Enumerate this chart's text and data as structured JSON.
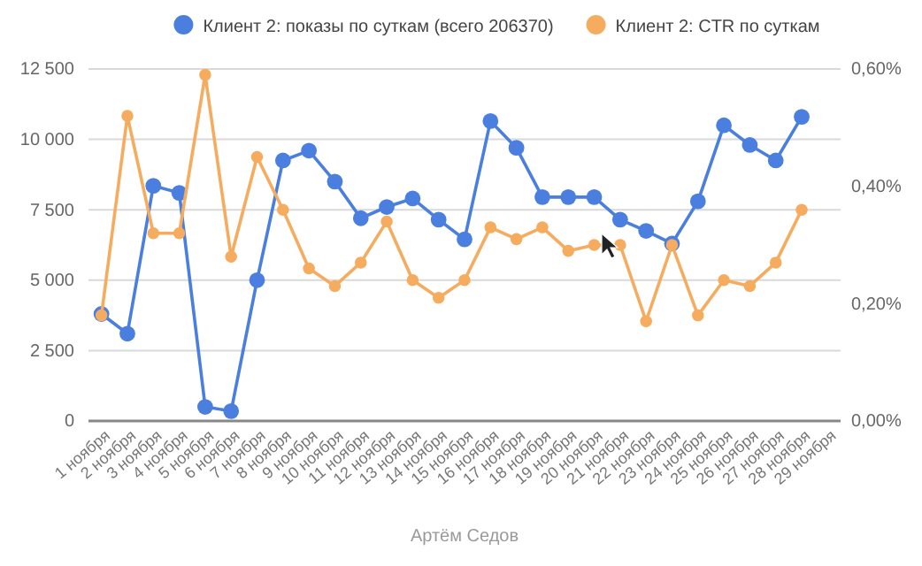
{
  "chart_data": {
    "type": "line",
    "categories": [
      "1 ноября",
      "2 ноября",
      "3 ноября",
      "4 ноября",
      "5 ноября",
      "6 ноября",
      "7 ноября",
      "8 ноября",
      "9 ноября",
      "10 ноября",
      "11 ноября",
      "12 ноября",
      "13 ноября",
      "14 ноября",
      "15 ноября",
      "16 ноября",
      "17 ноября",
      "18 ноября",
      "19 ноября",
      "20 ноября",
      "21 ноября",
      "22 ноября",
      "23 ноября",
      "24 ноября",
      "25 ноября",
      "26 ноября",
      "27 ноября",
      "28 ноября",
      "29 ноября"
    ],
    "series": [
      {
        "name": "Клиент 2: показы по суткам (всего 206370)",
        "color": "#4a7fe0",
        "values": [
          3800,
          3100,
          8350,
          8100,
          500,
          350,
          5000,
          9250,
          9600,
          8500,
          7200,
          7600,
          7900,
          7150,
          6450,
          10650,
          9700,
          7950,
          7950,
          7950,
          7150,
          6750,
          6300,
          7800,
          10500,
          9800,
          9250,
          10800,
          null
        ]
      },
      {
        "name": "Клиент 2: CTR по суткам",
        "color": "#f5ac5f",
        "axis": "y2",
        "values": [
          0.18,
          0.52,
          0.32,
          0.32,
          0.59,
          0.28,
          0.45,
          0.36,
          0.26,
          0.23,
          0.27,
          0.34,
          0.24,
          0.21,
          0.24,
          0.33,
          0.31,
          0.33,
          0.29,
          0.3,
          0.3,
          0.17,
          0.3,
          0.18,
          0.24,
          0.23,
          0.27,
          0.36,
          null
        ]
      }
    ],
    "ylim": [
      0,
      12500
    ],
    "yticks": [
      {
        "value": 0,
        "label": "0"
      },
      {
        "value": 2500,
        "label": "2 500"
      },
      {
        "value": 5000,
        "label": "5 000"
      },
      {
        "value": 7500,
        "label": "7 500"
      },
      {
        "value": 10000,
        "label": "10 000"
      },
      {
        "value": 12500,
        "label": "12 500"
      }
    ],
    "y2lim": [
      0,
      0.6
    ],
    "y2ticks": [
      {
        "value": 0,
        "label": "0,00%"
      },
      {
        "value": 0.2,
        "label": "0,20%"
      },
      {
        "value": 0.4,
        "label": "0,40%"
      },
      {
        "value": 0.6,
        "label": "0,60%"
      }
    ],
    "grid": "y",
    "legend": "top",
    "marker": "circle",
    "line_style": "solid",
    "annotations": [
      "Артём Седов"
    ]
  }
}
